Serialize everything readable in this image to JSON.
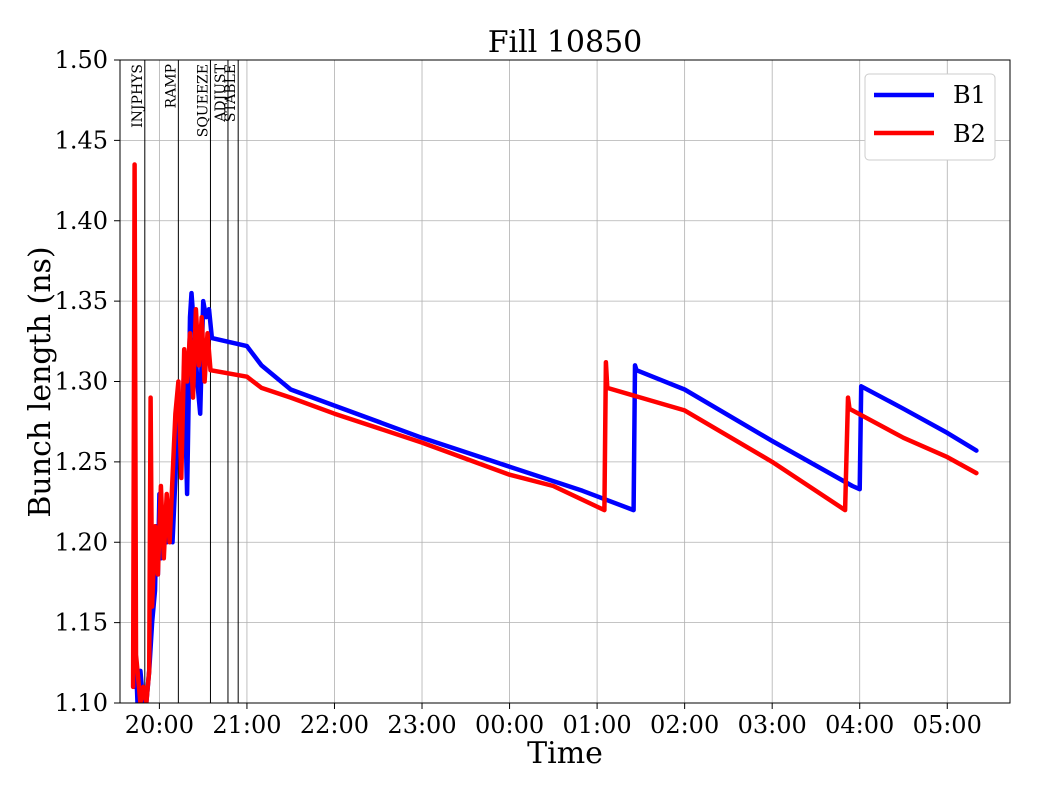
{
  "chart_data": {
    "type": "line",
    "title": "Fill 10850",
    "xlabel": "Time",
    "ylabel": "Bunch length (ns)",
    "ylim": [
      1.1,
      1.5
    ],
    "xlim": [
      "19:33",
      "05:43"
    ],
    "grid": true,
    "legend_position": "top-right",
    "yticks": [
      "1.10",
      "1.15",
      "1.20",
      "1.25",
      "1.30",
      "1.35",
      "1.40",
      "1.45",
      "1.50"
    ],
    "xticks": [
      {
        "t": "20:00",
        "label": "20:00"
      },
      {
        "t": "21:00",
        "label": "21:00"
      },
      {
        "t": "22:00",
        "label": "22:00"
      },
      {
        "t": "23:00",
        "label": "23:00"
      },
      {
        "t": "00:00",
        "label": "00:00"
      },
      {
        "t": "01:00",
        "label": "01:00"
      },
      {
        "t": "02:00",
        "label": "02:00"
      },
      {
        "t": "03:00",
        "label": "03:00"
      },
      {
        "t": "04:00",
        "label": "04:00"
      },
      {
        "t": "05:00",
        "label": "05:00"
      }
    ],
    "phases": [
      {
        "label": "INJPHYS",
        "t": "19:50"
      },
      {
        "label": "RAMP",
        "t": "20:13"
      },
      {
        "label": "SQUEEZE",
        "t": "20:35"
      },
      {
        "label": "ADJUST",
        "t": "20:47"
      },
      {
        "label": "STABLE",
        "t": "20:54"
      }
    ],
    "series": [
      {
        "name": "B1",
        "color": "#0000ff",
        "points": [
          [
            "19:43",
            1.11
          ],
          [
            "19:44",
            1.125
          ],
          [
            "19:45",
            1.1
          ],
          [
            "19:47",
            1.12
          ],
          [
            "19:49",
            1.1
          ],
          [
            "19:51",
            1.1
          ],
          [
            "19:53",
            1.12
          ],
          [
            "19:55",
            1.15
          ],
          [
            "19:57",
            1.17
          ],
          [
            "19:58",
            1.21
          ],
          [
            "19:59",
            1.18
          ],
          [
            "20:00",
            1.23
          ],
          [
            "20:01",
            1.19
          ],
          [
            "20:03",
            1.21
          ],
          [
            "20:05",
            1.2
          ],
          [
            "20:07",
            1.22
          ],
          [
            "20:09",
            1.2
          ],
          [
            "20:11",
            1.24
          ],
          [
            "20:13",
            1.29
          ],
          [
            "20:15",
            1.26
          ],
          [
            "20:17",
            1.31
          ],
          [
            "20:19",
            1.23
          ],
          [
            "20:21",
            1.34
          ],
          [
            "20:22",
            1.355
          ],
          [
            "20:24",
            1.33
          ],
          [
            "20:26",
            1.3
          ],
          [
            "20:28",
            1.28
          ],
          [
            "20:30",
            1.35
          ],
          [
            "20:32",
            1.34
          ],
          [
            "20:34",
            1.345
          ],
          [
            "20:36",
            1.327
          ],
          [
            "21:00",
            1.322
          ],
          [
            "21:10",
            1.31
          ],
          [
            "21:30",
            1.295
          ],
          [
            "22:00",
            1.285
          ],
          [
            "23:00",
            1.265
          ],
          [
            "00:00",
            1.247
          ],
          [
            "00:50",
            1.232
          ],
          [
            "01:25",
            1.22
          ],
          [
            "01:26",
            1.31
          ],
          [
            "01:27",
            1.307
          ],
          [
            "02:00",
            1.295
          ],
          [
            "03:00",
            1.263
          ],
          [
            "03:55",
            1.235
          ],
          [
            "04:00",
            1.233
          ],
          [
            "04:01",
            1.297
          ],
          [
            "04:30",
            1.283
          ],
          [
            "05:00",
            1.268
          ],
          [
            "05:20",
            1.257
          ]
        ]
      },
      {
        "name": "B2",
        "color": "#ff0000",
        "points": [
          [
            "19:42",
            1.11
          ],
          [
            "19:43",
            1.435
          ],
          [
            "19:44",
            1.13
          ],
          [
            "19:45",
            1.12
          ],
          [
            "19:47",
            1.1
          ],
          [
            "19:49",
            1.11
          ],
          [
            "19:51",
            1.1
          ],
          [
            "19:53",
            1.12
          ],
          [
            "19:54",
            1.29
          ],
          [
            "19:55",
            1.16
          ],
          [
            "19:57",
            1.21
          ],
          [
            "19:59",
            1.18
          ],
          [
            "20:01",
            1.235
          ],
          [
            "20:03",
            1.19
          ],
          [
            "20:05",
            1.23
          ],
          [
            "20:07",
            1.2
          ],
          [
            "20:09",
            1.24
          ],
          [
            "20:11",
            1.28
          ],
          [
            "20:13",
            1.3
          ],
          [
            "20:15",
            1.24
          ],
          [
            "20:17",
            1.32
          ],
          [
            "20:19",
            1.3
          ],
          [
            "20:21",
            1.33
          ],
          [
            "20:23",
            1.29
          ],
          [
            "20:25",
            1.345
          ],
          [
            "20:27",
            1.31
          ],
          [
            "20:29",
            1.34
          ],
          [
            "20:31",
            1.3
          ],
          [
            "20:33",
            1.33
          ],
          [
            "20:35",
            1.307
          ],
          [
            "21:00",
            1.303
          ],
          [
            "21:10",
            1.296
          ],
          [
            "21:30",
            1.29
          ],
          [
            "22:00",
            1.28
          ],
          [
            "23:00",
            1.262
          ],
          [
            "00:00",
            1.242
          ],
          [
            "00:30",
            1.235
          ],
          [
            "01:05",
            1.22
          ],
          [
            "01:06",
            1.312
          ],
          [
            "01:07",
            1.296
          ],
          [
            "02:00",
            1.282
          ],
          [
            "03:00",
            1.25
          ],
          [
            "03:50",
            1.22
          ],
          [
            "03:52",
            1.29
          ],
          [
            "03:53",
            1.283
          ],
          [
            "04:30",
            1.265
          ],
          [
            "05:00",
            1.253
          ],
          [
            "05:20",
            1.243
          ]
        ]
      }
    ]
  }
}
